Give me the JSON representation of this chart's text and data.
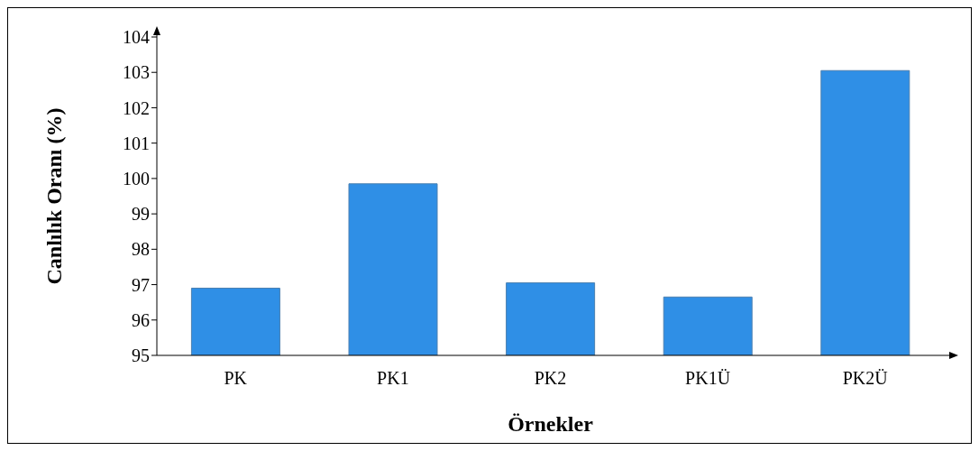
{
  "chart_data": {
    "type": "bar",
    "xlabel": "Örnekler",
    "ylabel": "Canlılık Oranı (%)",
    "categories": [
      "PK",
      "PK1",
      "PK2",
      "PK1Ü",
      "PK2Ü"
    ],
    "values": [
      96.9,
      99.85,
      97.05,
      96.65,
      103.05
    ],
    "color": "#2f8fe6",
    "ylim": [
      95,
      104
    ],
    "yticks": [
      95,
      96,
      97,
      98,
      99,
      100,
      101,
      102,
      103,
      104
    ]
  }
}
